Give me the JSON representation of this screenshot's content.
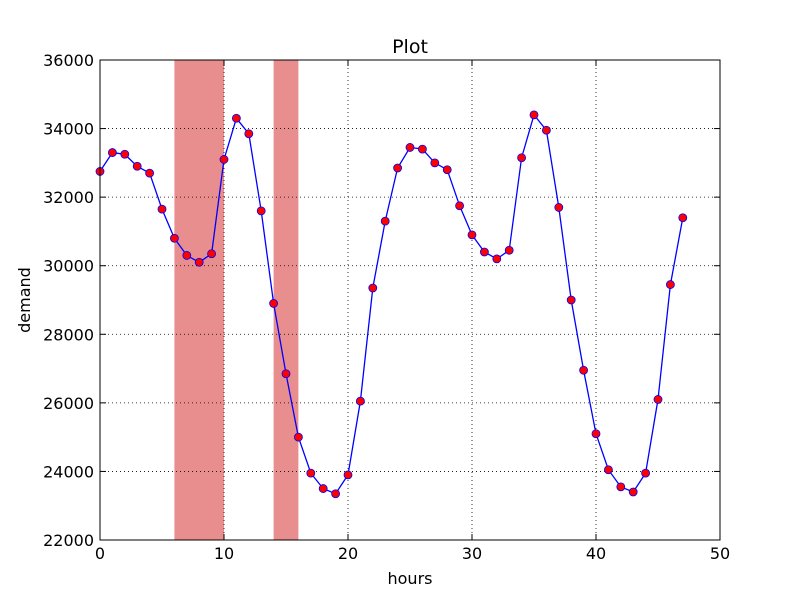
{
  "chart_data": {
    "type": "line",
    "title": "Plot",
    "xlabel": "hours",
    "ylabel": "demand",
    "xlim": [
      0,
      50
    ],
    "ylim": [
      22000,
      36000
    ],
    "x_ticks": [
      0,
      10,
      20,
      30,
      40,
      50
    ],
    "y_ticks": [
      22000,
      24000,
      26000,
      28000,
      30000,
      32000,
      34000,
      36000
    ],
    "grid": true,
    "line_color": "#0000ff",
    "marker_color": "#ff0000",
    "band_color": "#e88e8e",
    "highlight_bands": [
      [
        6,
        10
      ],
      [
        14,
        16
      ]
    ],
    "series": [
      {
        "x": [
          0,
          1,
          2,
          3,
          4,
          5,
          6,
          7,
          8,
          9,
          10,
          11,
          12,
          13,
          14,
          15,
          16,
          17,
          18,
          19,
          20,
          21,
          22,
          23,
          24,
          25,
          26,
          27,
          28,
          29,
          30,
          31,
          32,
          33,
          34,
          35,
          36,
          37,
          38,
          39,
          40,
          41,
          42,
          43,
          44,
          45,
          46,
          47
        ],
        "values": [
          32750,
          33300,
          33250,
          32900,
          32700,
          31650,
          30800,
          30300,
          30100,
          30350,
          33100,
          34300,
          33850,
          31600,
          28900,
          26850,
          25000,
          23950,
          23500,
          23350,
          23900,
          26050,
          29350,
          31300,
          32850,
          33450,
          33400,
          33000,
          32800,
          31750,
          30900,
          30400,
          30200,
          30450,
          33150,
          34400,
          33950,
          31700,
          29000,
          26950,
          25100,
          24050,
          23550,
          23400,
          23950,
          26100,
          29450,
          31400
        ]
      }
    ]
  }
}
